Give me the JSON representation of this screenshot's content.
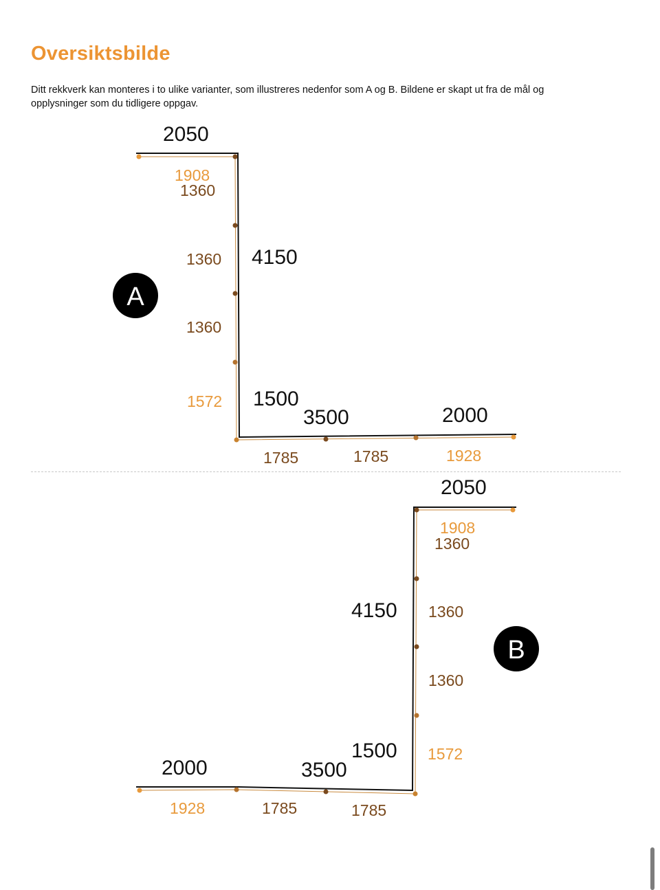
{
  "header": {
    "title": "Oversiktsbilde",
    "intro": "Ditt rekkverk kan monteres i to ulike varianter, som illustreres nedenfor som A og B. Bildene er skapt ut fra de mål og opplysninger som du tidligere oppgav."
  },
  "colors": {
    "title": "#ec9433",
    "post_mid": "#7a4a1e",
    "post_end": "#e89a3c",
    "rail": "#111111"
  },
  "variant_a": {
    "badge": "A",
    "segments": [
      "2050",
      "4150",
      "1500",
      "3500",
      "2000"
    ],
    "subsections": {
      "top": [
        "1908"
      ],
      "vertical": [
        "1360",
        "1360",
        "1360",
        "1572"
      ],
      "bottom": [
        "1785",
        "1785",
        "1928"
      ]
    }
  },
  "variant_b": {
    "badge": "B",
    "segments": [
      "2050",
      "4150",
      "1500",
      "3500",
      "2000"
    ],
    "subsections": {
      "top": [
        "1908"
      ],
      "vertical": [
        "1360",
        "1360",
        "1360",
        "1572"
      ],
      "bottom": [
        "1928",
        "1785",
        "1785"
      ]
    }
  }
}
